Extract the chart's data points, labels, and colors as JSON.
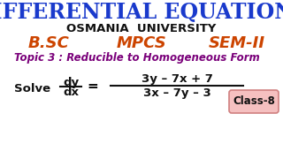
{
  "title": "DIFFERENTIAL EQUATIONS",
  "title_color": "#1a3acc",
  "university": "OSMANIA  UNIVERSITY",
  "university_color": "#111111",
  "bsc": "B.SC",
  "mpcs": "MPCS",
  "semii": "SEM-II",
  "bsc_mpcs_sem_color": "#cc4400",
  "topic": "Topic 3 : Reducible to Homogeneous Form",
  "topic_color": "#7a007a",
  "solve_label": "Solve",
  "numerator": "3y – 7x + 7",
  "denominator": "3x – 7y – 3",
  "class_label": "Class-8",
  "class_bg": "#f5c0c0",
  "class_border": "#d08080",
  "class_text_color": "#111111",
  "bg_color": "#ffffff"
}
